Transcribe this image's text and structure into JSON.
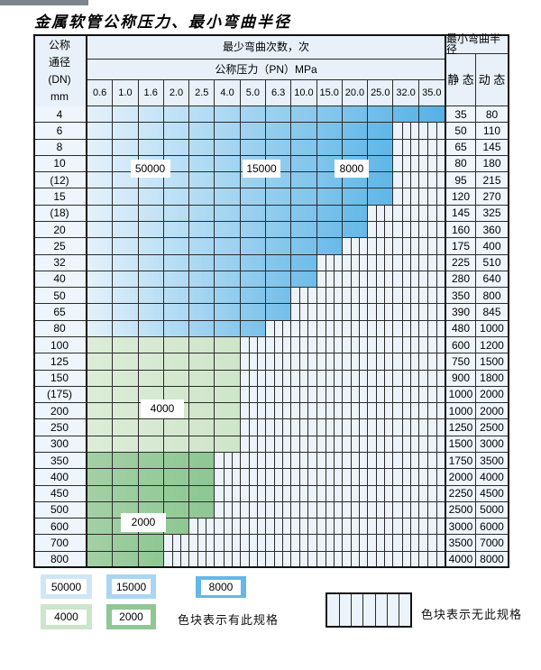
{
  "title": "金属软管公称压力、最小弯曲半径",
  "header": {
    "dn_lines": [
      "公称",
      "通径",
      "(DN)",
      "mm"
    ],
    "min_bend_cycles": "最少弯曲次数，次",
    "nominal_pressure": "公称压力（PN）MPa",
    "min_bend_radius": "最小弯曲半径",
    "static_label": "静 态",
    "dynamic_label": "动 态",
    "pressure_columns": [
      "0.6",
      "1.0",
      "1.6",
      "2.0",
      "2.5",
      "4.0",
      "5.0",
      "6.3",
      "10.0",
      "15.0",
      "20.0",
      "25.0",
      "32.0",
      "35.0"
    ]
  },
  "rows": [
    {
      "dn": "4",
      "max_pn": "35.0",
      "static": "35",
      "dynamic": "80",
      "palette": "blue"
    },
    {
      "dn": "6",
      "max_pn": "25.0",
      "static": "50",
      "dynamic": "110",
      "palette": "blue"
    },
    {
      "dn": "8",
      "max_pn": "25.0",
      "static": "65",
      "dynamic": "145",
      "palette": "blue"
    },
    {
      "dn": "10",
      "max_pn": "25.0",
      "static": "80",
      "dynamic": "180",
      "palette": "blue"
    },
    {
      "dn": "(12)",
      "max_pn": "25.0",
      "static": "95",
      "dynamic": "215",
      "palette": "blue"
    },
    {
      "dn": "15",
      "max_pn": "25.0",
      "static": "120",
      "dynamic": "270",
      "palette": "blue"
    },
    {
      "dn": "(18)",
      "max_pn": "20.0",
      "static": "145",
      "dynamic": "325",
      "palette": "blue"
    },
    {
      "dn": "20",
      "max_pn": "20.0",
      "static": "160",
      "dynamic": "360",
      "palette": "blue"
    },
    {
      "dn": "25",
      "max_pn": "15.0",
      "static": "175",
      "dynamic": "400",
      "palette": "blue"
    },
    {
      "dn": "32",
      "max_pn": "10.0",
      "static": "225",
      "dynamic": "510",
      "palette": "blue"
    },
    {
      "dn": "40",
      "max_pn": "10.0",
      "static": "280",
      "dynamic": "640",
      "palette": "blue"
    },
    {
      "dn": "50",
      "max_pn": "6.3",
      "static": "350",
      "dynamic": "800",
      "palette": "blue"
    },
    {
      "dn": "65",
      "max_pn": "6.3",
      "static": "390",
      "dynamic": "845",
      "palette": "blue"
    },
    {
      "dn": "80",
      "max_pn": "5.0",
      "static": "480",
      "dynamic": "1000",
      "palette": "blue"
    },
    {
      "dn": "100",
      "max_pn": "4.0",
      "static": "600",
      "dynamic": "1200",
      "palette": "green_4000"
    },
    {
      "dn": "125",
      "max_pn": "4.0",
      "static": "750",
      "dynamic": "1500",
      "palette": "green_4000"
    },
    {
      "dn": "150",
      "max_pn": "4.0",
      "static": "900",
      "dynamic": "1800",
      "palette": "green_4000"
    },
    {
      "dn": "(175)",
      "max_pn": "4.0",
      "static": "1000",
      "dynamic": "2000",
      "palette": "green_4000"
    },
    {
      "dn": "200",
      "max_pn": "4.0",
      "static": "1000",
      "dynamic": "2000",
      "palette": "green_4000"
    },
    {
      "dn": "250",
      "max_pn": "4.0",
      "static": "1250",
      "dynamic": "2500",
      "palette": "green_4000"
    },
    {
      "dn": "300",
      "max_pn": "4.0",
      "static": "1500",
      "dynamic": "3000",
      "palette": "green_4000"
    },
    {
      "dn": "350",
      "max_pn": "2.5",
      "static": "1750",
      "dynamic": "3500",
      "palette": "green_2000"
    },
    {
      "dn": "400",
      "max_pn": "2.5",
      "static": "2000",
      "dynamic": "4000",
      "palette": "green_2000"
    },
    {
      "dn": "450",
      "max_pn": "2.5",
      "static": "2250",
      "dynamic": "4500",
      "palette": "green_2000"
    },
    {
      "dn": "500",
      "max_pn": "2.5",
      "static": "2500",
      "dynamic": "5000",
      "palette": "green_2000"
    },
    {
      "dn": "600",
      "max_pn": "2.0",
      "static": "3000",
      "dynamic": "6000",
      "palette": "green_2000"
    },
    {
      "dn": "700",
      "max_pn": "1.6",
      "static": "3500",
      "dynamic": "7000",
      "palette": "green_2000"
    },
    {
      "dn": "800",
      "max_pn": "1.6",
      "static": "4000",
      "dynamic": "8000",
      "palette": "green_2000"
    }
  ],
  "zone_labels": [
    {
      "text": "50000"
    },
    {
      "text": "15000"
    },
    {
      "text": "8000"
    },
    {
      "text": "4000"
    },
    {
      "text": "2000"
    }
  ],
  "legend": {
    "swatches": [
      {
        "label": "50000",
        "palette_color": "#cfe6f7"
      },
      {
        "label": "15000",
        "palette_color": "#a9d6f2"
      },
      {
        "label": "8000",
        "palette_color": "#66b8e8"
      },
      {
        "label": "4000",
        "palette_color": "#cde5cb"
      },
      {
        "label": "2000",
        "palette_color": "#8fc795"
      }
    ],
    "has_spec_text": "色块表示有此规格",
    "no_spec_text": "色块表示无此规格"
  },
  "colors": {
    "blue_light": "#e3f1fb",
    "blue_dark": "#55b1e5",
    "green_4000_light": "#dcecd8",
    "green_4000_dark": "#cfe5ca",
    "green_2000_light": "#a3d0a5",
    "green_2000_dark": "#8ec793",
    "hatch_bg": "#ecf3fb",
    "grid_line": "#2b2b2b",
    "header_bg": "#e8f1fa",
    "label_cell_bg": "#eef5fc"
  }
}
